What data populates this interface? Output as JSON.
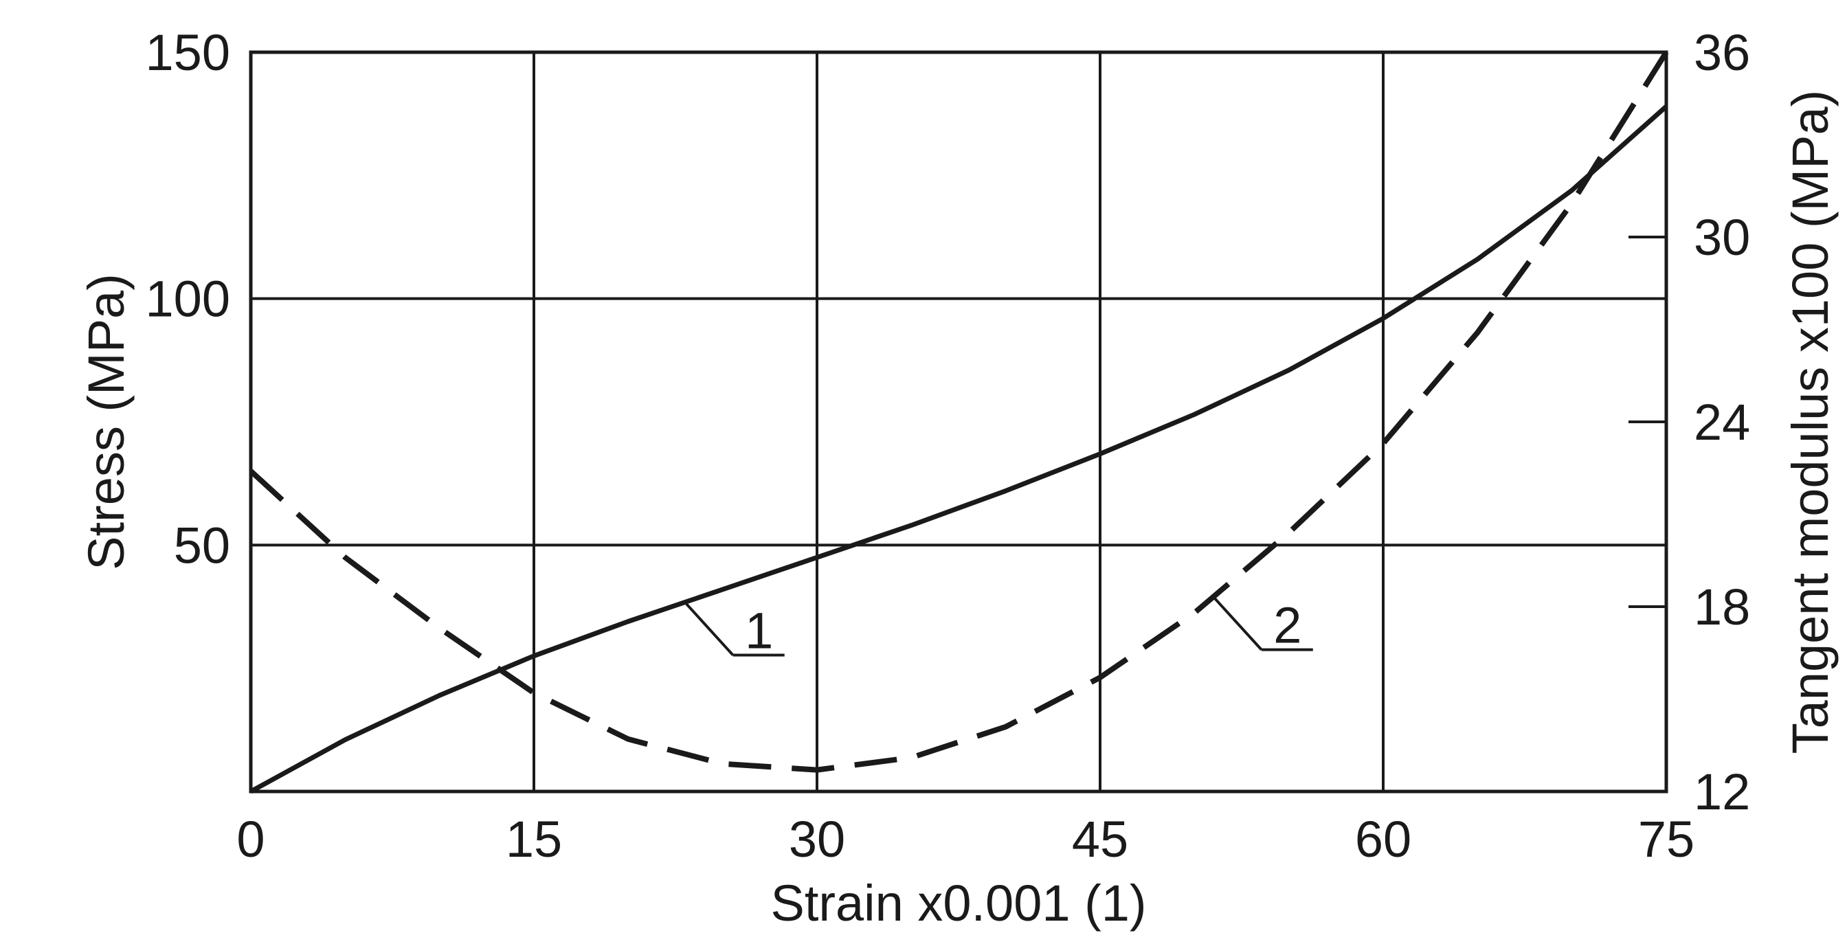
{
  "chart_data": {
    "type": "line",
    "title": "",
    "xlabel": "Strain x0.001 (1)",
    "ylabel": "Stress (MPa)",
    "y2label": "Tangent modulus x100 (MPa)",
    "xlim": [
      0,
      75
    ],
    "ylim": [
      0,
      150
    ],
    "y2lim": [
      12,
      36
    ],
    "x_ticks": [
      0,
      15,
      30,
      45,
      60,
      75
    ],
    "y_ticks": [
      50,
      100,
      150
    ],
    "y2_ticks": [
      12,
      18,
      24,
      30,
      36
    ],
    "grid": true,
    "colors": {
      "line": "#1a1a1a",
      "grid": "#1a1a1a",
      "background": "#ffffff"
    },
    "series": [
      {
        "label": "1",
        "axis": "left",
        "style": "solid",
        "x": [
          0,
          5,
          10,
          15,
          20,
          25,
          30,
          35,
          40,
          45,
          50,
          55,
          60,
          65,
          70,
          75
        ],
        "y": [
          0,
          10.5,
          19.5,
          27.5,
          34.5,
          41,
          47.5,
          54,
          61,
          68.5,
          76.5,
          85.5,
          96,
          108,
          122,
          139
        ]
      },
      {
        "label": "2",
        "axis": "right",
        "style": "dashed",
        "x": [
          0,
          5,
          10,
          15,
          20,
          25,
          30,
          35,
          40,
          45,
          50,
          55,
          60,
          65,
          70,
          75
        ],
        "y": [
          22.4,
          19.6,
          17.3,
          15.2,
          13.7,
          12.9,
          12.7,
          13.1,
          14.1,
          15.7,
          17.8,
          20.4,
          23.3,
          26.9,
          31.1,
          36.0
        ]
      }
    ],
    "annotations": [
      {
        "text": "1",
        "series": 0,
        "at_x": 23
      },
      {
        "text": "2",
        "series": 1,
        "at_x": 51
      }
    ]
  }
}
